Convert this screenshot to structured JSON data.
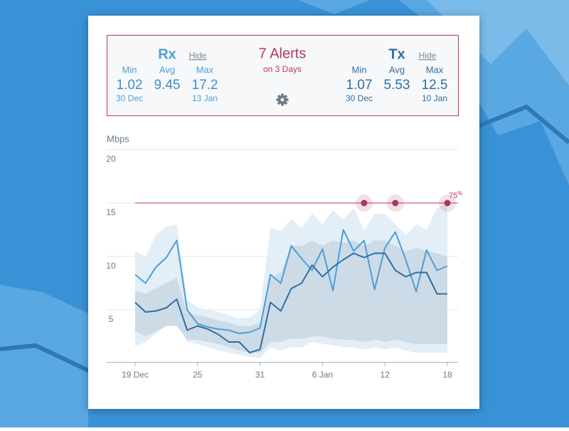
{
  "header": {
    "rx": {
      "name": "Rx",
      "hide": "Hide",
      "stats": [
        {
          "label": "Min",
          "value": 1.02,
          "date": "30 Dec"
        },
        {
          "label": "Avg",
          "value": 9.45
        },
        {
          "label": "Max",
          "value": 17.2,
          "date": "13 Jan"
        }
      ]
    },
    "alerts": {
      "title": "7 Alerts",
      "subtitle": "on 3 Days"
    },
    "tx": {
      "name": "Tx",
      "hide": "Hide",
      "stats": [
        {
          "label": "Min",
          "value": 1.07,
          "date": "30 Dec"
        },
        {
          "label": "Avg",
          "value": 5.53
        },
        {
          "label": "Max",
          "value": 12.5,
          "date": "10 Jan"
        }
      ]
    }
  },
  "chart_data": {
    "type": "line",
    "y_label": "Mbps",
    "categories": [
      "19 Dec",
      null,
      null,
      null,
      null,
      null,
      "25",
      null,
      null,
      null,
      null,
      null,
      "31",
      null,
      null,
      null,
      null,
      null,
      "6 Jan",
      null,
      null,
      null,
      null,
      null,
      "12",
      null,
      null,
      null,
      null,
      null,
      "18"
    ],
    "ylim": [
      0,
      20
    ],
    "yticks": [
      5,
      10,
      15,
      20
    ],
    "grid": true,
    "threshold": {
      "value": 15,
      "percent": 75,
      "unit": "%",
      "color": "#b5395c",
      "alert_at": [
        22,
        25,
        30
      ]
    },
    "bands": [
      {
        "color": "#e3eef7",
        "lower": [
          1.6,
          2,
          2.8,
          3.5,
          3.8,
          2,
          1.8,
          1.5,
          1.2,
          1,
          0.8,
          0.6,
          0.5,
          1.5,
          1.2,
          1.5,
          1.5,
          2,
          1.8,
          1.7,
          1.5,
          1.5,
          1.3,
          1.5,
          1.3,
          1.5,
          1.2,
          1,
          1,
          1,
          1
        ],
        "upper": [
          10.5,
          10,
          12,
          12.8,
          13,
          6,
          5.2,
          5,
          4.8,
          4.5,
          4.2,
          4.3,
          5,
          12.7,
          12.4,
          13.5,
          12.7,
          14,
          13,
          14.3,
          13.5,
          14.5,
          12.5,
          14,
          14,
          13,
          12,
          13,
          12.5,
          14.5,
          15
        ]
      },
      {
        "color": "#cddbe7",
        "lower": [
          3,
          2.5,
          3,
          3.5,
          3.5,
          2.2,
          2.2,
          2,
          1.8,
          1.5,
          1.2,
          1,
          1,
          2,
          2,
          2.3,
          2.3,
          2.5,
          2.5,
          2.3,
          2.2,
          2.2,
          2,
          2.2,
          2,
          2.2,
          2,
          1.8,
          1.8,
          1.8,
          1.8
        ],
        "upper": [
          6.8,
          6.5,
          7,
          7.5,
          8,
          4.7,
          4.5,
          4.3,
          4,
          3.8,
          3.5,
          3.5,
          3.8,
          8,
          8.5,
          11,
          11,
          11.5,
          11,
          11.5,
          11.3,
          11.5,
          11,
          11.5,
          11.5,
          11,
          10.5,
          10.8,
          10.5,
          10.3,
          10
        ]
      }
    ],
    "series": [
      {
        "name": "Rx",
        "color": "#4a9fd8",
        "values": [
          8.3,
          7.5,
          9,
          9.9,
          11.5,
          5,
          3.7,
          3.4,
          3.2,
          3.1,
          2.8,
          2.9,
          3.3,
          8.3,
          7.5,
          11,
          9.8,
          8.7,
          10.7,
          6.8,
          12.5,
          10.5,
          11.5,
          6.9,
          10.8,
          12.3,
          9.7,
          6.7,
          10.6,
          8.7,
          9.1
        ]
      },
      {
        "name": "Tx",
        "color": "#2e6fa3",
        "values": [
          5.7,
          4.8,
          4.9,
          5.2,
          6,
          3.1,
          3.5,
          3.2,
          2.7,
          2,
          2,
          1,
          1.3,
          5.7,
          4.9,
          7,
          7.5,
          9.2,
          8.1,
          9,
          9.7,
          10.3,
          9.9,
          10.3,
          10.3,
          8.7,
          8.1,
          8.5,
          8.5,
          6.5,
          6.5
        ]
      }
    ]
  }
}
